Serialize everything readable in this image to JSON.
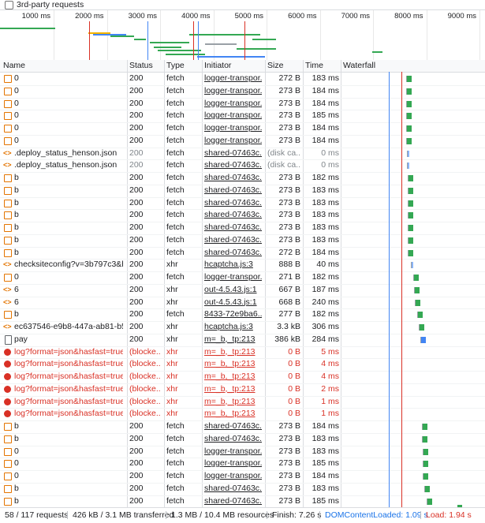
{
  "header": {
    "checkbox_label": "3rd-party requests"
  },
  "overview": {
    "ticks": [
      "1000 ms",
      "2000 ms",
      "3000 ms",
      "4000 ms",
      "5000 ms",
      "6000 ms",
      "7000 ms",
      "8000 ms",
      "9000 ms"
    ]
  },
  "table": {
    "columns": [
      "Name",
      "Status",
      "Type",
      "Initiator",
      "Size",
      "Time",
      "Waterfall"
    ],
    "rows": [
      [
        "0",
        "200",
        "fetch",
        "logger-transpor...",
        "272 B",
        "183 ms"
      ],
      [
        "0",
        "200",
        "fetch",
        "logger-transpor...",
        "273 B",
        "184 ms"
      ],
      [
        "0",
        "200",
        "fetch",
        "logger-transpor...",
        "273 B",
        "184 ms"
      ],
      [
        "0",
        "200",
        "fetch",
        "logger-transpor...",
        "273 B",
        "185 ms"
      ],
      [
        "0",
        "200",
        "fetch",
        "logger-transpor...",
        "273 B",
        "184 ms"
      ],
      [
        "0",
        "200",
        "fetch",
        "logger-transpor...",
        "273 B",
        "184 ms"
      ],
      [
        ".deploy_status_henson.json",
        "200",
        "fetch",
        "shared-07463c...",
        "(disk ca...",
        "0 ms"
      ],
      [
        ".deploy_status_henson.json",
        "200",
        "fetch",
        "shared-07463c...",
        "(disk ca...",
        "0 ms"
      ],
      [
        "b",
        "200",
        "fetch",
        "shared-07463c...",
        "273 B",
        "182 ms"
      ],
      [
        "b",
        "200",
        "fetch",
        "shared-07463c...",
        "273 B",
        "183 ms"
      ],
      [
        "b",
        "200",
        "fetch",
        "shared-07463c...",
        "273 B",
        "183 ms"
      ],
      [
        "b",
        "200",
        "fetch",
        "shared-07463c...",
        "273 B",
        "183 ms"
      ],
      [
        "b",
        "200",
        "fetch",
        "shared-07463c...",
        "273 B",
        "183 ms"
      ],
      [
        "b",
        "200",
        "fetch",
        "shared-07463c...",
        "273 B",
        "183 ms"
      ],
      [
        "b",
        "200",
        "fetch",
        "shared-07463c...",
        "272 B",
        "184 ms"
      ],
      [
        "checksiteconfig?v=3b797c3&ho...",
        "200",
        "xhr",
        "hcaptcha.js:3",
        "888 B",
        "40 ms"
      ],
      [
        "0",
        "200",
        "fetch",
        "logger-transpor...",
        "271 B",
        "182 ms"
      ],
      [
        "6",
        "200",
        "xhr",
        "out-4.5.43.js:1",
        "667 B",
        "187 ms"
      ],
      [
        "6",
        "200",
        "xhr",
        "out-4.5.43.js:1",
        "668 B",
        "240 ms"
      ],
      [
        "b",
        "200",
        "fetch",
        "8433-72e9ba6...",
        "277 B",
        "182 ms"
      ],
      [
        "ec637546-e9b8-447a-ab81-b5f...",
        "200",
        "xhr",
        "hcaptcha.js:3",
        "3.3 kB",
        "306 ms"
      ],
      [
        "pay",
        "200",
        "xhr",
        "m=_b,_tp:213",
        "386 kB",
        "284 ms"
      ],
      [
        "log?format=json&hasfast=true&...",
        "(blocke...",
        "xhr",
        "m=_b,_tp:213",
        "0 B",
        "5 ms"
      ],
      [
        "log?format=json&hasfast=true&...",
        "(blocke...",
        "xhr",
        "m=_b,_tp:213",
        "0 B",
        "4 ms"
      ],
      [
        "log?format=json&hasfast=true&...",
        "(blocke...",
        "xhr",
        "m=_b,_tp:213",
        "0 B",
        "4 ms"
      ],
      [
        "log?format=json&hasfast=true&...",
        "(blocke...",
        "xhr",
        "m=_b,_tp:213",
        "0 B",
        "2 ms"
      ],
      [
        "log?format=json&hasfast=true&...",
        "(blocke...",
        "xhr",
        "m=_b,_tp:213",
        "0 B",
        "1 ms"
      ],
      [
        "log?format=json&hasfast=true&...",
        "(blocke...",
        "xhr",
        "m=_b,_tp:213",
        "0 B",
        "1 ms"
      ],
      [
        "b",
        "200",
        "fetch",
        "shared-07463c...",
        "273 B",
        "184 ms"
      ],
      [
        "b",
        "200",
        "fetch",
        "shared-07463c...",
        "273 B",
        "183 ms"
      ],
      [
        "0",
        "200",
        "fetch",
        "logger-transpor...",
        "273 B",
        "183 ms"
      ],
      [
        "0",
        "200",
        "fetch",
        "logger-transpor...",
        "273 B",
        "185 ms"
      ],
      [
        "0",
        "200",
        "fetch",
        "logger-transpor...",
        "273 B",
        "184 ms"
      ],
      [
        "b",
        "200",
        "fetch",
        "shared-07463c...",
        "273 B",
        "183 ms"
      ],
      [
        "b",
        "200",
        "fetch",
        "shared-07463c...",
        "273 B",
        "185 ms"
      ]
    ]
  },
  "footer": [
    "58 / 117 requests",
    "426 kB / 3.1 MB transferred",
    "1.3 MB / 10.4 MB resources",
    "Finish: 7.26 s",
    "DOMContentLoaded: 1.09 s",
    "Load: 1.94 s"
  ]
}
